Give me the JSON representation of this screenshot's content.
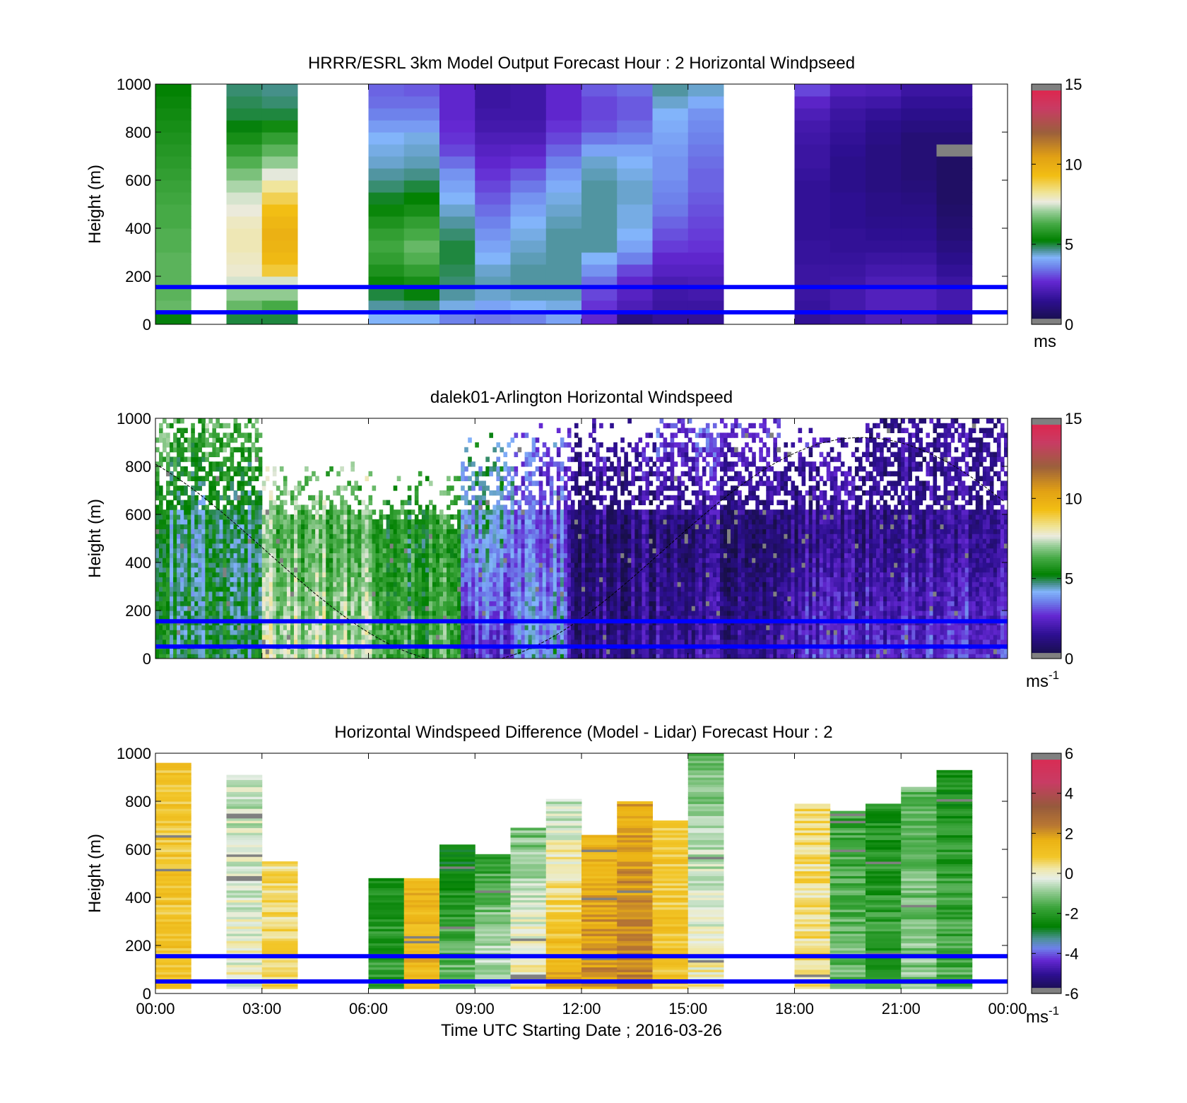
{
  "figure": {
    "xlabel": "Time UTC  Starting Date ; 2016-03-26",
    "x_tick_labels": [
      "00:00",
      "03:00",
      "06:00",
      "09:00",
      "12:00",
      "15:00",
      "18:00",
      "21:00",
      "00:00"
    ],
    "colors": {
      "guide_lines": "#0000ff",
      "missing": "#808080"
    }
  },
  "chart_data": [
    {
      "type": "heatmap",
      "title": "HRRR/ESRL 3km Model Output   Forecast Hour : 2 Horizontal Windpseed",
      "ylabel": "Height (m)",
      "ylim": [
        0,
        1000
      ],
      "y_tick_labels": [
        "0",
        "200",
        "400",
        "600",
        "800",
        "1000"
      ],
      "x_range_hours": [
        0,
        24
      ],
      "guide_lines_height_m": [
        50,
        155
      ],
      "colorbar": {
        "unit": "ms",
        "tick_labels": [
          "0",
          "5",
          "10",
          "15"
        ],
        "range": [
          0,
          15
        ]
      },
      "time_hours": [
        0.5,
        2.5,
        3.5,
        6.5,
        7.5,
        8.5,
        9.5,
        10.5,
        11.5,
        12.5,
        13.5,
        14.5,
        15.5,
        18.5,
        19.5,
        20.5,
        21.5,
        22.5
      ],
      "levels_m": [
        25,
        75,
        125,
        175,
        225,
        275,
        325,
        375,
        425,
        475,
        525,
        575,
        625,
        675,
        725,
        775,
        825,
        875,
        925,
        975
      ],
      "profiles": [
        [
          5.2,
          6.6,
          6.5,
          6.5,
          6.5,
          6.5,
          6.4,
          6.4,
          6.3,
          6.3,
          6.2,
          6.1,
          6.0,
          5.9,
          5.8,
          5.7,
          5.6,
          5.5,
          5.4,
          5.3
        ],
        [
          5.0,
          6.6,
          7.0,
          7.5,
          7.8,
          7.9,
          8.0,
          8.0,
          7.9,
          7.7,
          7.5,
          7.2,
          6.8,
          6.4,
          6.0,
          5.6,
          5.2,
          5.0,
          4.9,
          4.8
        ],
        [
          5.0,
          6.3,
          7.0,
          7.5,
          9.0,
          9.5,
          9.7,
          9.8,
          9.6,
          9.3,
          8.8,
          8.2,
          7.6,
          7.0,
          6.5,
          6.0,
          5.5,
          5.0,
          4.8,
          4.7
        ],
        [
          4.2,
          4.6,
          5.0,
          5.4,
          5.7,
          6.0,
          6.2,
          6.0,
          5.7,
          5.4,
          5.1,
          4.8,
          4.6,
          4.4,
          4.3,
          4.2,
          3.9,
          3.6,
          3.4,
          3.3
        ],
        [
          4.2,
          4.7,
          5.2,
          5.6,
          6.0,
          6.4,
          6.6,
          6.3,
          6.0,
          5.6,
          5.3,
          5.0,
          4.7,
          4.5,
          4.4,
          4.3,
          3.9,
          3.6,
          3.4,
          3.2
        ],
        [
          3.6,
          4.3,
          4.6,
          4.8,
          4.9,
          5.0,
          5.0,
          4.8,
          4.6,
          4.4,
          4.2,
          4.0,
          3.8,
          3.4,
          3.0,
          2.8,
          2.7,
          2.6,
          2.6,
          2.6
        ],
        [
          3.5,
          4.0,
          4.4,
          4.5,
          4.4,
          4.2,
          4.0,
          3.8,
          3.6,
          3.4,
          3.2,
          3.0,
          2.8,
          2.6,
          2.4,
          2.2,
          2.0,
          1.9,
          1.8,
          1.8
        ],
        [
          3.6,
          4.2,
          4.5,
          4.6,
          4.6,
          4.5,
          4.4,
          4.3,
          4.2,
          4.0,
          3.8,
          3.5,
          3.2,
          2.8,
          2.5,
          2.2,
          2.0,
          1.9,
          1.9,
          1.9
        ],
        [
          4.0,
          4.3,
          4.5,
          4.6,
          4.6,
          4.6,
          4.6,
          4.6,
          4.5,
          4.4,
          4.3,
          4.1,
          3.9,
          3.6,
          3.3,
          3.0,
          2.8,
          2.6,
          2.6,
          2.6
        ],
        [
          2.6,
          2.8,
          3.0,
          3.4,
          3.8,
          4.2,
          4.6,
          4.6,
          4.6,
          4.6,
          4.6,
          4.6,
          4.5,
          4.4,
          4.0,
          3.5,
          3.1,
          3.0,
          3.0,
          3.2
        ],
        [
          1.2,
          2.2,
          2.4,
          2.6,
          3.0,
          3.6,
          4.0,
          4.2,
          4.3,
          4.3,
          4.4,
          4.4,
          4.3,
          4.2,
          4.0,
          3.6,
          3.4,
          3.2,
          3.2,
          3.4
        ],
        [
          1.6,
          1.8,
          1.9,
          2.1,
          2.4,
          2.6,
          2.9,
          3.1,
          3.3,
          3.5,
          3.6,
          3.7,
          3.8,
          3.8,
          3.9,
          4.0,
          4.1,
          4.2,
          4.4,
          4.6
        ],
        [
          1.6,
          1.8,
          2.0,
          2.2,
          2.4,
          2.6,
          2.8,
          2.9,
          3.0,
          3.1,
          3.2,
          3.3,
          3.3,
          3.4,
          3.5,
          3.6,
          3.7,
          3.8,
          4.1,
          4.4
        ],
        [
          1.6,
          1.7,
          1.8,
          1.8,
          1.8,
          1.7,
          1.7,
          1.6,
          1.6,
          1.6,
          1.6,
          1.6,
          1.7,
          1.8,
          1.8,
          1.9,
          2.0,
          2.2,
          2.5,
          3.0
        ],
        [
          1.8,
          2.0,
          2.0,
          1.9,
          1.8,
          1.7,
          1.6,
          1.6,
          1.5,
          1.5,
          1.5,
          1.4,
          1.4,
          1.4,
          1.5,
          1.6,
          1.7,
          1.8,
          2.0,
          2.3
        ],
        [
          2.2,
          2.3,
          2.3,
          2.2,
          2.0,
          1.8,
          1.6,
          1.5,
          1.4,
          1.3,
          1.3,
          1.2,
          1.2,
          1.2,
          1.2,
          1.3,
          1.4,
          1.6,
          1.9,
          2.2
        ],
        [
          2.2,
          2.3,
          2.3,
          2.2,
          2.0,
          1.8,
          1.6,
          1.5,
          1.4,
          1.3,
          1.2,
          1.1,
          1.0,
          1.0,
          1.0,
          1.0,
          1.2,
          1.4,
          1.6,
          1.8
        ],
        [
          1.8,
          2.0,
          2.0,
          1.8,
          1.6,
          1.4,
          1.2,
          1.0,
          0.9,
          0.8,
          0.7,
          0.7,
          0.7,
          0.7,
          -1,
          1.0,
          1.2,
          1.4,
          1.6,
          1.8
        ]
      ]
    },
    {
      "type": "heatmap",
      "title": "dalek01-Arlington  Horizontal Windspeed",
      "ylabel": "Height (m)",
      "ylim": [
        0,
        1000
      ],
      "y_tick_labels": [
        "0",
        "200",
        "400",
        "600",
        "800",
        "1000"
      ],
      "x_range_hours": [
        0,
        24
      ],
      "guide_lines_height_m": [
        50,
        155
      ],
      "colorbar": {
        "unit": "ms",
        "unit_exponent": "-1",
        "tick_labels": [
          "0",
          "5",
          "10",
          "15"
        ],
        "range": [
          0,
          15
        ]
      },
      "segments": [
        {
          "t_start": 0,
          "t_end": 3,
          "base": 5.2,
          "top": 6.5,
          "mid": 4.8,
          "coverage_top_m": 1000
        },
        {
          "t_start": 3,
          "t_end": 6,
          "base": 7.4,
          "top": 7.2,
          "mid": 6.4,
          "coverage_top_m": 700
        },
        {
          "t_start": 6,
          "t_end": 8.5,
          "base": 6.0,
          "top": 6.8,
          "mid": 5.6,
          "coverage_top_m": 650
        },
        {
          "t_start": 8.5,
          "t_end": 10,
          "base": 2.4,
          "top": 4.6,
          "mid": 4.0,
          "coverage_top_m": 820
        },
        {
          "t_start": 10,
          "t_end": 11.5,
          "base": 4.2,
          "top": 3.0,
          "mid": 3.2,
          "coverage_top_m": 860
        },
        {
          "t_start": 11.5,
          "t_end": 14,
          "base": 1.6,
          "top": 2.4,
          "mid": 1.2,
          "coverage_top_m": 900
        },
        {
          "t_start": 14,
          "t_end": 17.5,
          "base": 1.8,
          "top": 3.2,
          "mid": 1.0,
          "coverage_top_m": 1000
        },
        {
          "t_start": 17.5,
          "t_end": 20,
          "base": 2.6,
          "top": 2.0,
          "mid": 1.4,
          "coverage_top_m": 850
        },
        {
          "t_start": 20,
          "t_end": 24,
          "base": 2.8,
          "top": 1.6,
          "mid": 1.6,
          "coverage_top_m": 1000
        }
      ]
    },
    {
      "type": "heatmap",
      "title": "Horizontal Windspeed Difference (Model - Lidar) Forecast Hour : 2",
      "ylabel": "Height (m)",
      "ylim": [
        0,
        1000
      ],
      "y_tick_labels": [
        "0",
        "200",
        "400",
        "600",
        "800",
        "1000"
      ],
      "x_range_hours": [
        0,
        24
      ],
      "guide_lines_height_m": [
        50,
        155
      ],
      "colorbar": {
        "unit": "ms",
        "unit_exponent": "-1",
        "tick_labels": [
          "-6",
          "-4",
          "-2",
          "0",
          "2",
          "4",
          "6"
        ],
        "range": [
          -6,
          6
        ]
      },
      "time_hours": [
        0.5,
        2.5,
        3.5,
        6.5,
        7.5,
        8.5,
        9.5,
        10.5,
        11.5,
        12.5,
        13.5,
        14.5,
        15.5,
        18.5,
        19.5,
        20.5,
        21.5,
        22.5
      ],
      "column_top_m": [
        960,
        910,
        550,
        480,
        480,
        620,
        580,
        690,
        810,
        660,
        800,
        720,
        1000,
        790,
        760,
        790,
        860,
        930
      ],
      "column_mean_diff": [
        1.0,
        0.0,
        0.6,
        -1.8,
        1.4,
        -1.0,
        -0.3,
        0.4,
        1.8,
        2.2,
        2.5,
        1.0,
        0.3,
        0.4,
        -1.2,
        -1.8,
        -1.0,
        -1.5
      ],
      "column_upper_trend": [
        0.0,
        -0.6,
        -0.2,
        -0.4,
        0.0,
        -1.8,
        -1.6,
        -1.6,
        -2.4,
        -0.8,
        -0.8,
        -0.2,
        -1.6,
        0.0,
        -0.6,
        -0.4,
        -0.4,
        -0.8
      ]
    }
  ]
}
